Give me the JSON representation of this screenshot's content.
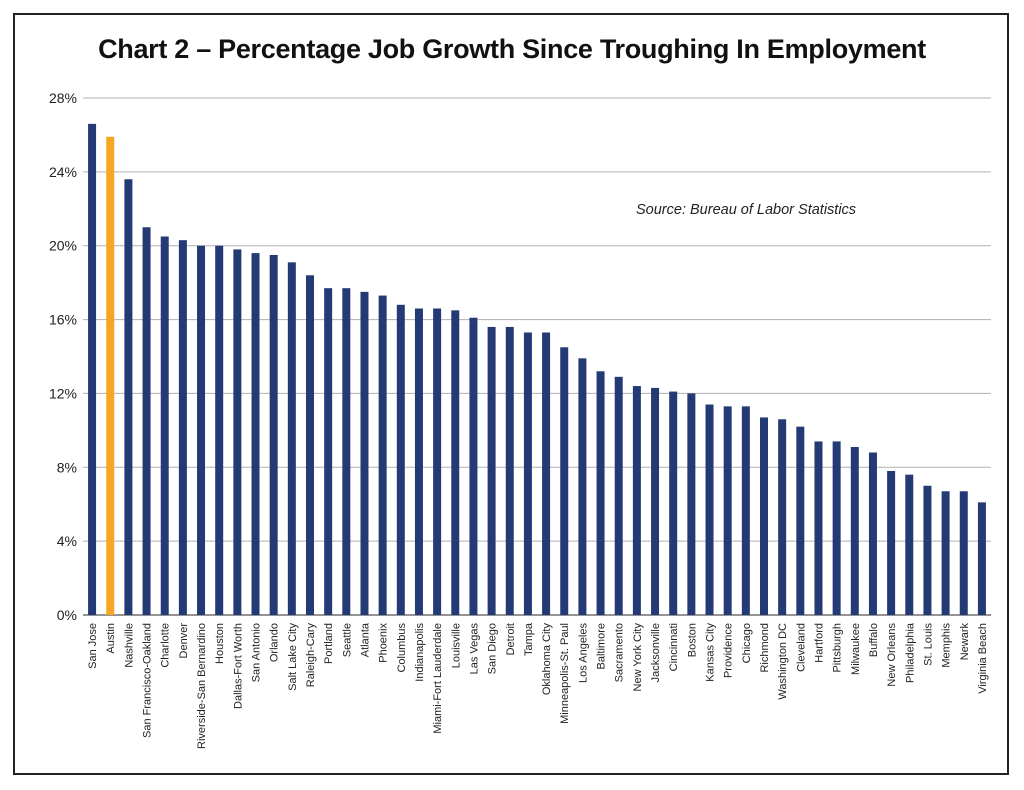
{
  "chart_data": {
    "type": "bar",
    "title": "Chart 2 – Percentage Job Growth Since Troughing In Employment",
    "annotation": "Source: Bureau of Labor Statistics",
    "xlabel": "",
    "ylabel": "",
    "ylim": [
      0,
      28
    ],
    "yticks": [
      "0%",
      "4%",
      "8%",
      "12%",
      "16%",
      "20%",
      "24%",
      "28%"
    ],
    "grid": true,
    "colors": {
      "default": "#243a75",
      "highlight": "#f5a623",
      "grid": "#b0b0b0"
    },
    "highlight_category": "Austin",
    "categories": [
      "San Jose",
      "Austin",
      "Nashville",
      "San Francisco-Oakland",
      "Charlotte",
      "Denver",
      "Riverside-San Bernardino",
      "Houston",
      "Dallas-Fort Worth",
      "San Antonio",
      "Orlando",
      "Salt Lake City",
      "Raleigh-Cary",
      "Portland",
      "Seattle",
      "Atlanta",
      "Phoenix",
      "Columbus",
      "Indianapolis",
      "Miami-Fort Lauderdale",
      "Louisville",
      "Las Vegas",
      "San Diego",
      "Detroit",
      "Tampa",
      "Oklahoma City",
      "Minneapolis-St. Paul",
      "Los Angeles",
      "Baltimore",
      "Sacramento",
      "New York City",
      "Jacksonville",
      "Cincinnati",
      "Boston",
      "Kansas City",
      "Providence",
      "Chicago",
      "Richmond",
      "Washington DC",
      "Cleveland",
      "Hartford",
      "Pittsburgh",
      "Milwaukee",
      "Buffalo",
      "New Orleans",
      "Philadelphia",
      "St. Louis",
      "Memphis",
      "Newark",
      "Virginia Beach"
    ],
    "values": [
      26.6,
      25.9,
      23.6,
      21.0,
      20.5,
      20.3,
      20.0,
      20.0,
      19.8,
      19.6,
      19.5,
      19.1,
      18.4,
      17.7,
      17.7,
      17.5,
      17.3,
      16.8,
      16.6,
      16.6,
      16.5,
      16.1,
      15.6,
      15.6,
      15.3,
      15.3,
      14.5,
      13.9,
      13.2,
      12.9,
      12.4,
      12.3,
      12.1,
      12.0,
      11.4,
      11.3,
      11.3,
      10.7,
      10.6,
      10.2,
      9.4,
      9.4,
      9.1,
      8.8,
      7.8,
      7.6,
      7.0,
      6.7,
      6.7,
      6.1
    ]
  }
}
